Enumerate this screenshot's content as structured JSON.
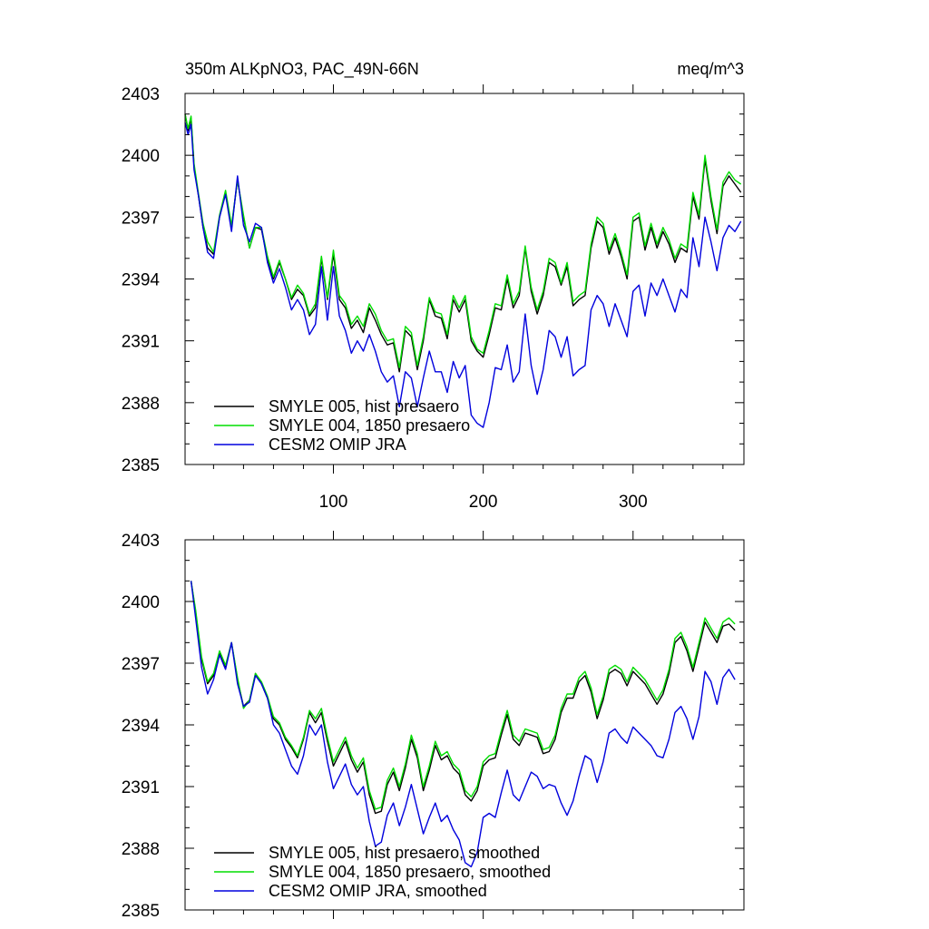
{
  "chart_data": [
    {
      "type": "line",
      "title": "350m ALKpNO3, PAC_49N-66N",
      "units": "meq/m^3",
      "xlabel": "",
      "ylabel": "",
      "xlim": [
        1,
        374
      ],
      "ylim": [
        2385,
        2403
      ],
      "yticks": [
        2385,
        2388,
        2391,
        2394,
        2397,
        2400,
        2403
      ],
      "xticks": [
        100,
        200,
        300
      ],
      "xtick_labels": [
        "100",
        "200",
        "300"
      ],
      "show_xtick_labels": true,
      "legend_position": "bottom-left",
      "x": [
        1,
        3,
        5,
        7,
        10,
        13,
        16,
        20,
        24,
        28,
        32,
        36,
        40,
        44,
        48,
        52,
        56,
        60,
        64,
        68,
        72,
        76,
        80,
        84,
        88,
        92,
        96,
        100,
        104,
        108,
        112,
        116,
        120,
        124,
        128,
        132,
        136,
        140,
        144,
        148,
        152,
        156,
        160,
        164,
        168,
        172,
        176,
        180,
        184,
        188,
        192,
        196,
        200,
        204,
        208,
        212,
        216,
        220,
        224,
        228,
        232,
        236,
        240,
        244,
        248,
        252,
        256,
        260,
        264,
        268,
        272,
        276,
        280,
        284,
        288,
        292,
        296,
        300,
        304,
        308,
        312,
        316,
        320,
        324,
        328,
        332,
        336,
        340,
        344,
        348,
        352,
        356,
        360,
        364,
        368,
        372
      ],
      "series": [
        {
          "name": "SMYLE 005, hist presaero",
          "color": "#000000",
          "values": [
            2402,
            2401.2,
            2401.8,
            2399.5,
            2398,
            2396.5,
            2395.5,
            2395.2,
            2397,
            2398.2,
            2396.5,
            2398.8,
            2397,
            2395.5,
            2396.5,
            2396.4,
            2395,
            2394,
            2394.8,
            2394,
            2393,
            2393.5,
            2393.2,
            2392.2,
            2392.6,
            2395,
            2393,
            2395.2,
            2393,
            2392.6,
            2391.6,
            2392,
            2391.4,
            2392.6,
            2392,
            2391.3,
            2390.8,
            2390.9,
            2389.5,
            2391.5,
            2391.2,
            2389.6,
            2391,
            2393,
            2392.2,
            2392.1,
            2391.1,
            2393,
            2392.4,
            2393,
            2391,
            2390.5,
            2390.2,
            2391.3,
            2392.6,
            2392.5,
            2394,
            2392.6,
            2393.2,
            2395.5,
            2393.4,
            2392.3,
            2393.2,
            2394.8,
            2394.6,
            2393.7,
            2394.6,
            2392.7,
            2393,
            2393.2,
            2395.5,
            2396.8,
            2396.5,
            2395.2,
            2396,
            2395.1,
            2394,
            2396.8,
            2397,
            2395.4,
            2396.5,
            2395.5,
            2396.3,
            2395.7,
            2394.8,
            2395.5,
            2395.3,
            2398,
            2396.9,
            2399.8,
            2397.8,
            2396.2,
            2398.5,
            2399,
            2398.6,
            2398.2
          ]
        },
        {
          "name": "SMYLE 004, 1850 presaero",
          "color": "#00dd00",
          "values": [
            2402,
            2401.3,
            2401.9,
            2399.6,
            2398.1,
            2396.7,
            2395.8,
            2395.3,
            2397.1,
            2398.3,
            2396.6,
            2398.8,
            2397.1,
            2395.5,
            2396.5,
            2396.5,
            2395.1,
            2394.1,
            2394.9,
            2394,
            2393.1,
            2393.7,
            2393.3,
            2392.3,
            2392.8,
            2395.1,
            2393.1,
            2395.4,
            2393.2,
            2392.8,
            2391.8,
            2392.2,
            2391.7,
            2392.8,
            2392.3,
            2391.5,
            2391,
            2391.1,
            2389.7,
            2391.7,
            2391.4,
            2389.8,
            2391.2,
            2393.1,
            2392.4,
            2392.3,
            2391.3,
            2393.2,
            2392.6,
            2393.2,
            2391.2,
            2390.6,
            2390.4,
            2391.5,
            2392.8,
            2392.7,
            2394.2,
            2392.8,
            2393.4,
            2395.6,
            2393.6,
            2392.5,
            2393.4,
            2395,
            2394.8,
            2393.8,
            2394.8,
            2392.9,
            2393.2,
            2393.4,
            2395.7,
            2397,
            2396.7,
            2395.4,
            2396.2,
            2395.3,
            2394.2,
            2397,
            2397.2,
            2395.6,
            2396.7,
            2395.7,
            2396.5,
            2395.9,
            2395,
            2395.7,
            2395.5,
            2398.2,
            2397.1,
            2400,
            2398,
            2396.4,
            2398.7,
            2399.2,
            2398.8,
            2398.6
          ]
        },
        {
          "name": "CESM2 OMIP JRA",
          "color": "#0000dd",
          "values": [
            2401.6,
            2401,
            2401.5,
            2399.3,
            2398,
            2396.5,
            2395.3,
            2395,
            2397,
            2398.1,
            2396.3,
            2399,
            2396.6,
            2395.8,
            2396.7,
            2396.5,
            2394.8,
            2393.8,
            2394.5,
            2393.6,
            2392.5,
            2393,
            2392.5,
            2391.3,
            2391.8,
            2394.6,
            2392,
            2394.6,
            2392.2,
            2391.5,
            2390.4,
            2391,
            2390.5,
            2391.3,
            2390.5,
            2389.5,
            2389,
            2389.3,
            2387.8,
            2389.5,
            2389.2,
            2387.8,
            2389.2,
            2390.5,
            2389.5,
            2389.5,
            2388.5,
            2390,
            2389.2,
            2389.8,
            2387.4,
            2387,
            2386.8,
            2388,
            2389.7,
            2389.6,
            2390.8,
            2389,
            2389.5,
            2392.3,
            2389.8,
            2388.4,
            2389.6,
            2391.5,
            2391.2,
            2390.2,
            2391.2,
            2389.3,
            2389.6,
            2389.8,
            2392.5,
            2393.2,
            2392.8,
            2391.7,
            2392.8,
            2392,
            2391.2,
            2393.4,
            2393.7,
            2392.2,
            2393.8,
            2393.2,
            2394,
            2393.2,
            2392.4,
            2393.5,
            2393.1,
            2396,
            2394.6,
            2397,
            2395.8,
            2394.4,
            2396,
            2396.6,
            2396.3,
            2396.8
          ]
        }
      ]
    },
    {
      "type": "line",
      "title": "",
      "units": "",
      "xlabel": "",
      "ylabel": "",
      "xlim": [
        1,
        374
      ],
      "ylim": [
        2385,
        2403
      ],
      "yticks": [
        2385,
        2388,
        2391,
        2394,
        2397,
        2400,
        2403
      ],
      "xticks": [
        100,
        200,
        300
      ],
      "xtick_labels": [
        "100",
        "200",
        "300"
      ],
      "show_xtick_labels": false,
      "legend_position": "bottom-left",
      "x": [
        5,
        8,
        12,
        16,
        20,
        24,
        28,
        32,
        36,
        40,
        44,
        48,
        52,
        56,
        60,
        64,
        68,
        72,
        76,
        80,
        84,
        88,
        92,
        96,
        100,
        104,
        108,
        112,
        116,
        120,
        124,
        128,
        132,
        136,
        140,
        144,
        148,
        152,
        156,
        160,
        164,
        168,
        172,
        176,
        180,
        184,
        188,
        192,
        196,
        200,
        204,
        208,
        212,
        216,
        220,
        224,
        228,
        232,
        236,
        240,
        244,
        248,
        252,
        256,
        260,
        264,
        268,
        272,
        276,
        280,
        284,
        288,
        292,
        296,
        300,
        304,
        308,
        312,
        316,
        320,
        324,
        328,
        332,
        336,
        340,
        344,
        348,
        352,
        356,
        360,
        364,
        368
      ],
      "series": [
        {
          "name": "SMYLE 005, hist presaero, smoothed",
          "color": "#000000",
          "values": [
            2401,
            2399.5,
            2397.2,
            2396,
            2396.4,
            2397.5,
            2396.8,
            2398,
            2396.2,
            2394.9,
            2395.2,
            2396.5,
            2396,
            2395.3,
            2394.3,
            2394,
            2393.3,
            2392.9,
            2392.4,
            2393.3,
            2394.6,
            2394.1,
            2394.6,
            2393.2,
            2392,
            2392.6,
            2393.2,
            2392.3,
            2391.7,
            2392.2,
            2390.6,
            2389.7,
            2389.8,
            2391.1,
            2391.7,
            2390.8,
            2391.9,
            2393.3,
            2392.4,
            2390.8,
            2391.8,
            2393,
            2392.3,
            2392.5,
            2391.9,
            2391.6,
            2390.6,
            2390.3,
            2390.8,
            2392,
            2392.3,
            2392.4,
            2393.5,
            2394.5,
            2393.3,
            2393,
            2393.6,
            2393.5,
            2393.4,
            2392.6,
            2392.7,
            2393.3,
            2394.6,
            2395.3,
            2395.3,
            2396.1,
            2396.4,
            2395.6,
            2394.3,
            2395.2,
            2396.5,
            2396.7,
            2396.5,
            2395.9,
            2396.6,
            2396.3,
            2396,
            2395.5,
            2395,
            2395.5,
            2396.5,
            2398,
            2398.3,
            2397.6,
            2396.6,
            2397.8,
            2399,
            2398.5,
            2398,
            2398.8,
            2398.9,
            2398.6
          ]
        },
        {
          "name": "SMYLE 004, 1850 presaero, smoothed",
          "color": "#00dd00",
          "values": [
            2401,
            2399.6,
            2397.3,
            2396.1,
            2396.5,
            2397.6,
            2396.9,
            2398,
            2396.3,
            2394.8,
            2395.2,
            2396.5,
            2396.1,
            2395.4,
            2394.4,
            2394.1,
            2393.4,
            2393,
            2392.5,
            2393.4,
            2394.7,
            2394.3,
            2394.8,
            2393.4,
            2392.2,
            2392.8,
            2393.4,
            2392.5,
            2391.9,
            2392.4,
            2390.8,
            2389.9,
            2390,
            2391.3,
            2391.9,
            2391,
            2392.1,
            2393.5,
            2392.6,
            2391,
            2392,
            2393.2,
            2392.5,
            2392.7,
            2392.1,
            2391.8,
            2390.8,
            2390.5,
            2391,
            2392.2,
            2392.5,
            2392.6,
            2393.7,
            2394.7,
            2393.5,
            2393.2,
            2393.8,
            2393.7,
            2393.6,
            2392.8,
            2392.9,
            2393.5,
            2394.8,
            2395.5,
            2395.5,
            2396.3,
            2396.6,
            2395.8,
            2394.5,
            2395.4,
            2396.7,
            2396.9,
            2396.7,
            2396.1,
            2396.8,
            2396.5,
            2396.2,
            2395.7,
            2395.2,
            2395.7,
            2396.7,
            2398.2,
            2398.5,
            2397.8,
            2396.8,
            2398,
            2399.2,
            2398.7,
            2398.2,
            2399,
            2399.2,
            2398.9
          ]
        },
        {
          "name": "CESM2 OMIP JRA, smoothed",
          "color": "#0000dd",
          "values": [
            2401,
            2399.2,
            2396.8,
            2395.5,
            2396.2,
            2397.4,
            2396.7,
            2398,
            2396,
            2394.9,
            2395.1,
            2396.4,
            2396,
            2395.3,
            2394,
            2393.6,
            2392.8,
            2392,
            2391.6,
            2392.5,
            2394,
            2393.5,
            2394,
            2392.2,
            2390.9,
            2391.5,
            2392.1,
            2391.1,
            2390.6,
            2391,
            2389.3,
            2388.1,
            2388.3,
            2389.6,
            2390.2,
            2389.1,
            2390,
            2391.1,
            2389.9,
            2388.7,
            2389.5,
            2390.2,
            2389.3,
            2389.6,
            2388.9,
            2388.4,
            2387.3,
            2387.1,
            2387.8,
            2389.5,
            2389.7,
            2389.5,
            2390.7,
            2391.8,
            2390.6,
            2390.3,
            2391,
            2391.7,
            2391.5,
            2390.9,
            2391.1,
            2391,
            2390.2,
            2389.6,
            2390.3,
            2391.5,
            2392.5,
            2392.3,
            2391.2,
            2392.2,
            2393.6,
            2393.8,
            2393.4,
            2393.1,
            2393.9,
            2393.6,
            2393.3,
            2393,
            2392.5,
            2392.4,
            2393.3,
            2394.6,
            2394.9,
            2394.3,
            2393.3,
            2394.4,
            2396.6,
            2396.1,
            2395,
            2396.3,
            2396.7,
            2396.2
          ]
        }
      ]
    }
  ]
}
